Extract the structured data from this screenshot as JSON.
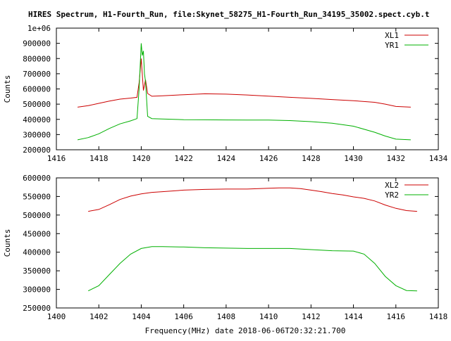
{
  "title": "HIRES Spectrum, H1-Fourth_Run, file:Skynet_58275_H1-Fourth_Run_34195_35002.spect.cyb.t",
  "xlabel": "Frequency(MHz) date 2018-06-06T20:32:21.700",
  "colors": {
    "red": "#cc0000",
    "green": "#00b000"
  },
  "chart_data": [
    {
      "type": "line",
      "ylabel": "Counts",
      "xlim": [
        1416,
        1434
      ],
      "ylim": [
        200000,
        1000000
      ],
      "x_ticks": [
        "1416",
        "1418",
        "1420",
        "1422",
        "1424",
        "1426",
        "1428",
        "1430",
        "1432",
        "1434"
      ],
      "y_ticks": [
        "200000",
        "300000",
        "400000",
        "500000",
        "600000",
        "700000",
        "800000",
        "900000",
        "1e+06"
      ],
      "legend_position": "top-right",
      "series": [
        {
          "name": "XL1",
          "color": "red",
          "x": [
            1417.0,
            1417.5,
            1418.0,
            1418.5,
            1419.0,
            1419.5,
            1419.8,
            1419.9,
            1420.0,
            1420.1,
            1420.2,
            1420.3,
            1420.5,
            1421.0,
            1422.0,
            1423.0,
            1424.0,
            1425.0,
            1426.0,
            1427.0,
            1428.0,
            1429.0,
            1430.0,
            1431.0,
            1431.5,
            1432.0,
            1432.7
          ],
          "y": [
            480000,
            490000,
            505000,
            520000,
            533000,
            540000,
            545000,
            640000,
            800000,
            590000,
            660000,
            570000,
            552000,
            555000,
            562000,
            568000,
            566000,
            560000,
            553000,
            545000,
            538000,
            530000,
            523000,
            512000,
            500000,
            485000,
            480000
          ]
        },
        {
          "name": "YR1",
          "color": "green",
          "x": [
            1417.0,
            1417.5,
            1418.0,
            1418.5,
            1419.0,
            1419.5,
            1419.8,
            1419.9,
            1420.0,
            1420.05,
            1420.1,
            1420.15,
            1420.2,
            1420.3,
            1420.5,
            1421.0,
            1422.0,
            1423.0,
            1424.0,
            1425.0,
            1426.0,
            1427.0,
            1428.0,
            1429.0,
            1430.0,
            1431.0,
            1431.5,
            1432.0,
            1432.7
          ],
          "y": [
            265000,
            280000,
            305000,
            340000,
            370000,
            390000,
            405000,
            600000,
            900000,
            820000,
            850000,
            700000,
            650000,
            420000,
            405000,
            402000,
            398000,
            397000,
            396000,
            395000,
            395000,
            392000,
            385000,
            375000,
            355000,
            315000,
            290000,
            270000,
            265000
          ]
        }
      ]
    },
    {
      "type": "line",
      "ylabel": "Counts",
      "xlim": [
        1400,
        1418
      ],
      "ylim": [
        250000,
        600000
      ],
      "x_ticks": [
        "1400",
        "1402",
        "1404",
        "1406",
        "1408",
        "1410",
        "1412",
        "1414",
        "1416",
        "1418"
      ],
      "y_ticks": [
        "250000",
        "300000",
        "350000",
        "400000",
        "450000",
        "500000",
        "550000",
        "600000"
      ],
      "legend_position": "top-right",
      "series": [
        {
          "name": "XL2",
          "color": "red",
          "x": [
            1401.5,
            1402.0,
            1402.5,
            1403.0,
            1403.5,
            1404.0,
            1404.5,
            1405.0,
            1406.0,
            1407.0,
            1408.0,
            1409.0,
            1410.0,
            1410.5,
            1411.0,
            1411.5,
            1412.0,
            1412.5,
            1413.0,
            1413.5,
            1414.0,
            1414.5,
            1415.0,
            1415.5,
            1416.0,
            1416.5,
            1417.0
          ],
          "y": [
            510000,
            515000,
            528000,
            542000,
            551000,
            557000,
            561000,
            563000,
            567000,
            569000,
            570000,
            570000,
            572000,
            573000,
            573000,
            571000,
            567000,
            563000,
            558000,
            554000,
            549000,
            545000,
            538000,
            527000,
            518000,
            512000,
            510000
          ]
        },
        {
          "name": "YR2",
          "color": "green",
          "x": [
            1401.5,
            1402.0,
            1402.5,
            1403.0,
            1403.5,
            1404.0,
            1404.5,
            1405.0,
            1406.0,
            1407.0,
            1408.0,
            1409.0,
            1410.0,
            1411.0,
            1412.0,
            1413.0,
            1414.0,
            1414.5,
            1415.0,
            1415.5,
            1416.0,
            1416.5,
            1417.0
          ],
          "y": [
            296000,
            310000,
            340000,
            370000,
            395000,
            410000,
            415000,
            415000,
            414000,
            412000,
            411000,
            410000,
            410000,
            410000,
            407000,
            404000,
            403000,
            395000,
            370000,
            335000,
            310000,
            297000,
            296000
          ]
        }
      ]
    }
  ]
}
